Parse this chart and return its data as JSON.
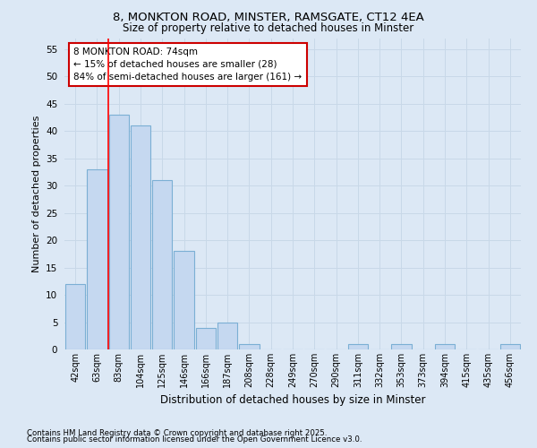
{
  "title1": "8, MONKTON ROAD, MINSTER, RAMSGATE, CT12 4EA",
  "title2": "Size of property relative to detached houses in Minster",
  "xlabel": "Distribution of detached houses by size in Minster",
  "ylabel": "Number of detached properties",
  "categories": [
    "42sqm",
    "63sqm",
    "83sqm",
    "104sqm",
    "125sqm",
    "146sqm",
    "166sqm",
    "187sqm",
    "208sqm",
    "228sqm",
    "249sqm",
    "270sqm",
    "290sqm",
    "311sqm",
    "332sqm",
    "353sqm",
    "373sqm",
    "394sqm",
    "415sqm",
    "435sqm",
    "456sqm"
  ],
  "values": [
    12,
    33,
    43,
    41,
    31,
    18,
    4,
    5,
    1,
    0,
    0,
    0,
    0,
    1,
    0,
    1,
    0,
    1,
    0,
    0,
    1
  ],
  "bar_color": "#c5d8f0",
  "bar_edge_color": "#7bafd4",
  "grid_color": "#c8d8e8",
  "background_color": "#dce8f5",
  "redline_x": 1.5,
  "annotation_text": "8 MONKTON ROAD: 74sqm\n← 15% of detached houses are smaller (28)\n84% of semi-detached houses are larger (161) →",
  "annotation_box_facecolor": "#ffffff",
  "annotation_box_edgecolor": "#cc0000",
  "ylim": [
    0,
    57
  ],
  "yticks": [
    0,
    5,
    10,
    15,
    20,
    25,
    30,
    35,
    40,
    45,
    50,
    55
  ],
  "footnote1": "Contains HM Land Registry data © Crown copyright and database right 2025.",
  "footnote2": "Contains public sector information licensed under the Open Government Licence v3.0."
}
